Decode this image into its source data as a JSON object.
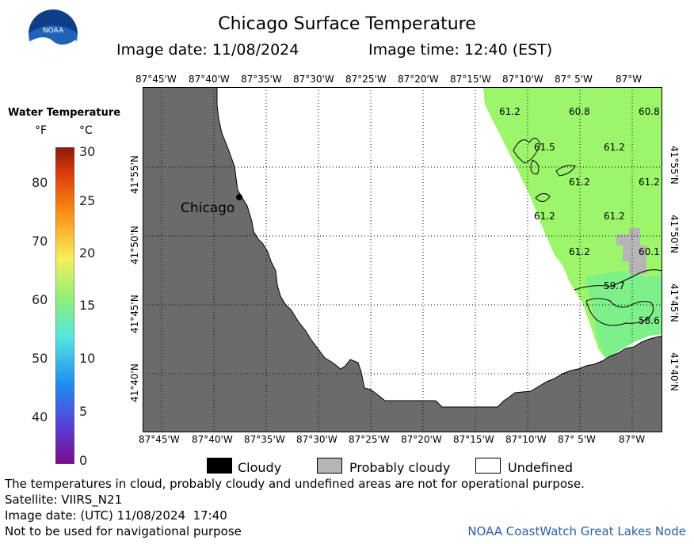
{
  "header": {
    "title": "Chicago Surface Temperature",
    "image_date": "Image date: 11/08/2024",
    "image_time": "Image time: 12:40 (EST)",
    "logo_text": "NOAA"
  },
  "colorbar": {
    "title": "Water Temperature",
    "unit_f": "°F",
    "unit_c": "°C",
    "f_ticks": [
      "80",
      "70",
      "60",
      "50",
      "40"
    ],
    "c_ticks": [
      "30",
      "25",
      "20",
      "15",
      "10",
      "5",
      "0"
    ]
  },
  "map": {
    "lon_labels": [
      "87°45'W",
      "87°40'W",
      "87°35'W",
      "87°30'W",
      "87°25'W",
      "87°20'W",
      "87°15'W",
      "87°10'W",
      "87° 5'W",
      "87°W"
    ],
    "lat_labels": [
      "41°55'N",
      "41°50'N",
      "41°45'N",
      "41°40'N"
    ],
    "city": "Chicago",
    "temps": [
      "61.2",
      "60.8",
      "60.8",
      "61.5",
      "61.2",
      "61.2",
      "61.2",
      "61.2",
      "61.2",
      "61.2",
      "60.1",
      "59.7",
      "58.6"
    ],
    "colors": {
      "land": "#6b6b6b",
      "water_green": "#9cf56b",
      "water_teal": "#7df08a",
      "cloud_prob": "#b5b5b5"
    }
  },
  "legend": {
    "cloudy": "Cloudy",
    "probably_cloudy": "Probably cloudy",
    "undefined": "Undefined"
  },
  "footer": {
    "note": "The temperatures in cloud, probably cloudy and undefined areas are not for operational purpose.",
    "satellite": "Satellite: VIIRS_N21",
    "utc": "Image date: (UTC) 11/08/2024  17:40",
    "nav": "Not to be used for navigational purpose",
    "credit": "NOAA CoastWatch Great Lakes Node"
  }
}
